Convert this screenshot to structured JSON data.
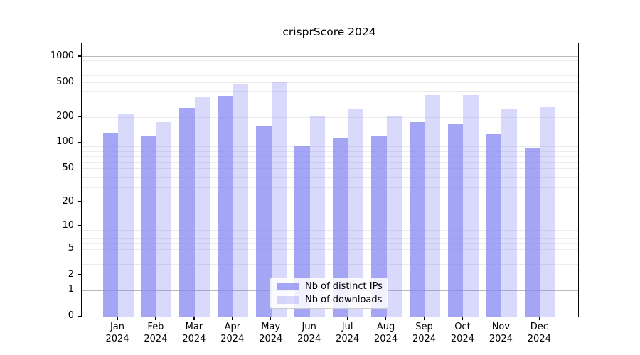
{
  "title": "crisprScore 2024",
  "chart_data": {
    "type": "bar",
    "title": "crisprScore 2024",
    "categories": [
      "Jan",
      "Feb",
      "Mar",
      "Apr",
      "May",
      "Jun",
      "Jul",
      "Aug",
      "Sep",
      "Oct",
      "Nov",
      "Dec"
    ],
    "year": "2024",
    "series": [
      {
        "name": "Nb of distinct IPs",
        "values": [
          130,
          122,
          258,
          355,
          157,
          93,
          116,
          119,
          176,
          168,
          127,
          89
        ]
      },
      {
        "name": "Nb of downloads",
        "values": [
          215,
          175,
          345,
          490,
          520,
          208,
          248,
          207,
          360,
          362,
          246,
          265
        ]
      }
    ],
    "ylabel": "",
    "xlabel": "",
    "y_ticks": [
      1000,
      500,
      200,
      100,
      50,
      20,
      10,
      5,
      2,
      1,
      0
    ],
    "y_major_gridlines": [
      1,
      10,
      100,
      1000
    ],
    "y_minor_gridlines": [
      2,
      3,
      4,
      5,
      6,
      7,
      8,
      9,
      20,
      30,
      40,
      50,
      60,
      70,
      80,
      90,
      200,
      300,
      400,
      500,
      600,
      700,
      800,
      900
    ],
    "scale": "log10(v+1)",
    "ylim": [
      0,
      1100
    ],
    "grid": true,
    "legend_position": "lower-center"
  },
  "colors": {
    "bar_base": "#8282f2",
    "bar_ips_rendered": "#aaaaf7",
    "bar_downloads_rendered": "#dadaf9",
    "major_grid": "#b9b9b9",
    "minor_grid": "#ebebeb",
    "axis": "#000000",
    "background": "#ffffff"
  }
}
